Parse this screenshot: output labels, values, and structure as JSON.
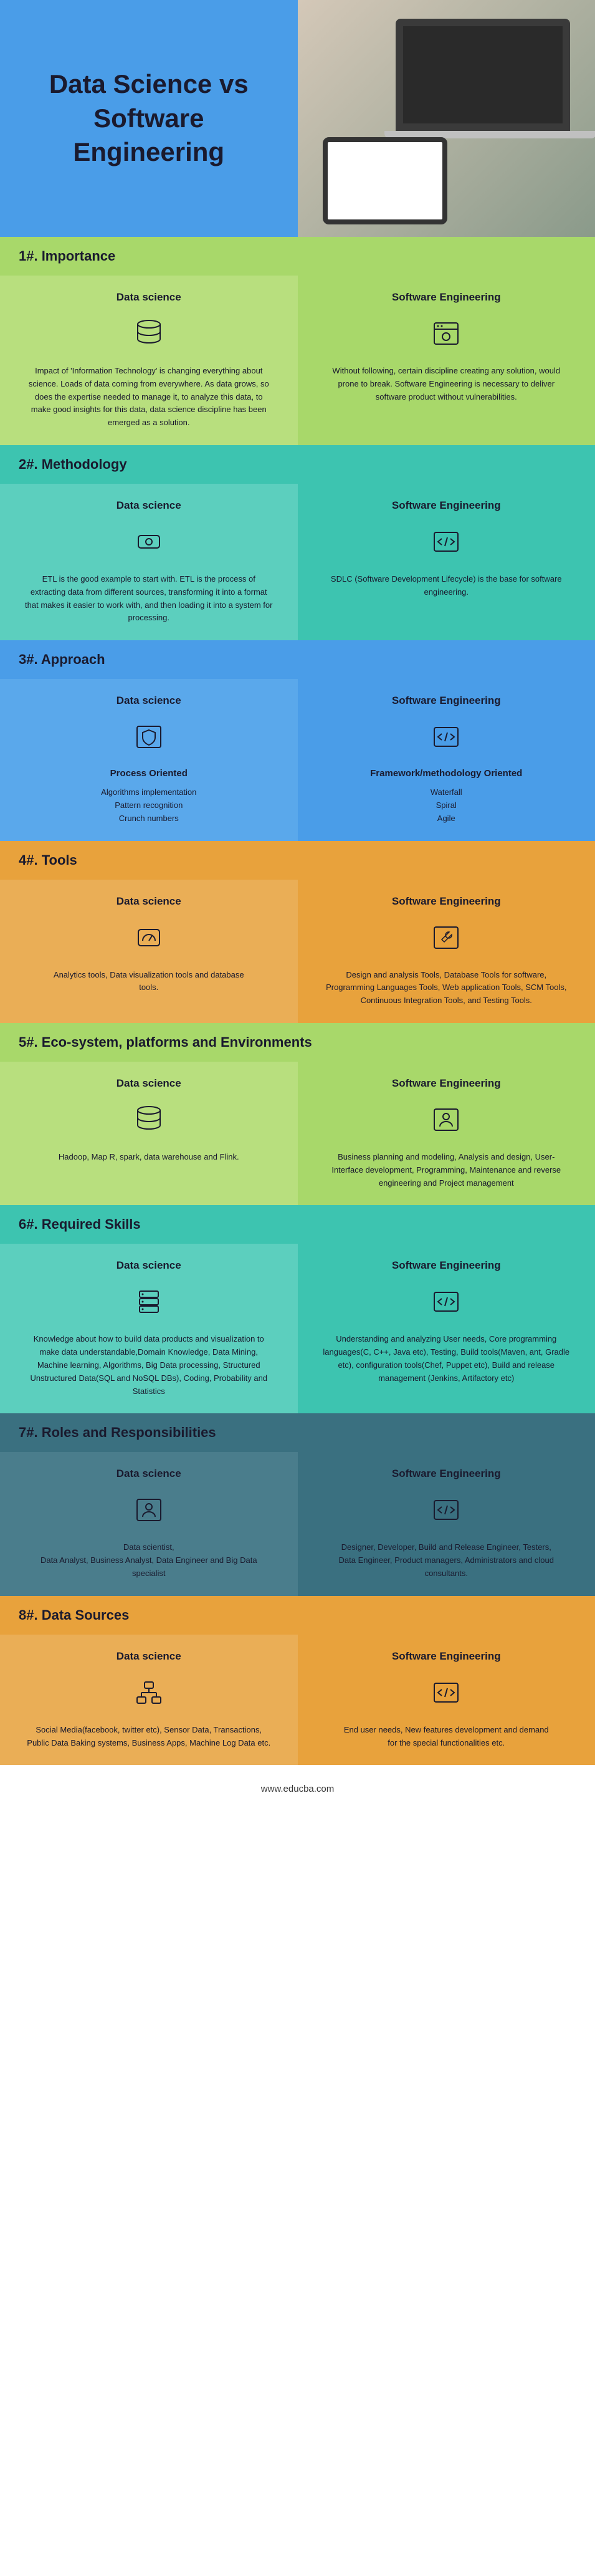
{
  "title": "Data Science vs Software Engineering",
  "footer": "www.educba.com",
  "col_labels": {
    "ds": "Data science",
    "se": "Software Engineering"
  },
  "sections": [
    {
      "num": "1#.",
      "title": "Importance",
      "header_bg": "#a8d86a",
      "ds_bg": "#b8df7e",
      "se_bg": "#a8d86a",
      "ds_icon": "database",
      "se_icon": "window",
      "ds_text": "Impact of 'Information Technology' is changing everything about science. Loads of data coming from everywhere. As data grows, so does the expertise needed to manage it, to analyze this data, to make good insights for this data, data science discipline has been emerged as a solution.",
      "se_text": "Without following, certain discipline creating any solution, would prone to break.  Software Engineering is necessary to deliver software product without vulnerabilities."
    },
    {
      "num": "2#.",
      "title": "Methodology",
      "header_bg": "#3dc4b0",
      "ds_bg": "#5ccfbe",
      "se_bg": "#3dc4b0",
      "ds_icon": "drive",
      "se_icon": "code",
      "ds_text": "ETL is the good example to start with. ETL is the process of extracting data from different sources, transforming it into a format that makes it easier to work with, and then loading it into a system for processing.",
      "se_text": "SDLC (Software Development Lifecycle) is the base for software engineering."
    },
    {
      "num": "3#.",
      "title": "Approach",
      "header_bg": "#4a9de8",
      "ds_bg": "#5aa8eb",
      "se_bg": "#4a9de8",
      "ds_icon": "shield",
      "se_icon": "code",
      "ds_subtitle": "Process Oriented",
      "se_subtitle": "Framework/methodology  Oriented",
      "ds_text": "Algorithms implementation\nPattern recognition\nCrunch numbers",
      "se_text": "Waterfall\nSpiral\nAgile"
    },
    {
      "num": "4#.",
      "title": "Tools",
      "header_bg": "#e8a23c",
      "ds_bg": "#eaae56",
      "se_bg": "#e8a23c",
      "ds_icon": "gauge",
      "se_icon": "wrench",
      "ds_text": "Analytics tools, Data visualization tools and database\ntools.",
      "se_text": "Design and analysis Tools, Database Tools for software, Programming Languages Tools, Web application Tools, SCM Tools, Continuous Integration Tools, and Testing Tools."
    },
    {
      "num": "5#.",
      "title": "Eco-system, platforms and Environments",
      "header_bg": "#a8d86a",
      "ds_bg": "#b8df7e",
      "se_bg": "#a8d86a",
      "ds_icon": "database",
      "se_icon": "user",
      "ds_text": "Hadoop, Map R, spark, data warehouse and Flink.",
      "se_text": "Business planning and modeling, Analysis and design, User-Interface development, Programming, Maintenance and reverse engineering and Project management"
    },
    {
      "num": "6#.",
      "title": "Required Skills",
      "header_bg": "#3dc4b0",
      "ds_bg": "#5ccfbe",
      "se_bg": "#3dc4b0",
      "ds_icon": "server",
      "se_icon": "code",
      "ds_text": "Knowledge about how to build data products and visualization to make data understandable,Domain Knowledge, Data Mining, Machine learning, Algorithms, Big Data processing, Structured Unstructured Data(SQL and NoSQL DBs), Coding, Probability and Statistics",
      "se_text": "Understanding and analyzing User needs, Core programming languages(C, C++, Java etc), Testing, Build tools(Maven, ant, Gradle etc), configuration tools(Chef, Puppet etc), Build and release management (Jenkins, Artifactory etc)"
    },
    {
      "num": "7#.",
      "title": "Roles and Responsibilities",
      "header_bg": "#3a7080",
      "ds_bg": "#4a7d8c",
      "se_bg": "#3a7080",
      "ds_icon": "user",
      "se_icon": "code",
      "ds_text": "Data scientist,\nData Analyst, Business Analyst, Data Engineer and Big Data specialist",
      "se_text": "Designer, Developer, Build and Release Engineer, Testers,\nData Engineer, Product managers, Administrators and cloud consultants."
    },
    {
      "num": "8#.",
      "title": "Data Sources",
      "header_bg": "#e8a23c",
      "ds_bg": "#eaae56",
      "se_bg": "#e8a23c",
      "ds_icon": "network",
      "se_icon": "code",
      "ds_text": "Social  Media(facebook, twitter etc), Sensor Data, Transactions, Public Data Baking systems, Business Apps, Machine Log Data etc.",
      "se_text": "End user needs, New features development and demand\nfor the special functionalities etc."
    }
  ],
  "icons": {
    "database": "<svg viewBox='0 0 50 50'><ellipse cx='25' cy='10' rx='18' ry='6' fill='none' stroke='#1a1a2e' stroke-width='2'/><path d='M7 10 v12 a18 6 0 0 0 36 0 V10' fill='none' stroke='#1a1a2e' stroke-width='2'/><path d='M7 22 v12 a18 6 0 0 0 36 0 V22' fill='none' stroke='#1a1a2e' stroke-width='2'/></svg>",
    "window": "<svg viewBox='0 0 50 50'><rect x='6' y='8' width='38' height='34' rx='3' fill='none' stroke='#1a1a2e' stroke-width='2'/><line x1='6' y1='18' x2='44' y2='18' stroke='#1a1a2e' stroke-width='2'/><circle cx='12' cy='13' r='1.5' fill='#1a1a2e'/><circle cx='18' cy='13' r='1.5' fill='#1a1a2e'/><circle cx='25' cy='30' r='6' fill='none' stroke='#1a1a2e' stroke-width='2'/></svg>",
    "drive": "<svg viewBox='0 0 50 50'><rect x='8' y='15' width='34' height='20' rx='4' fill='none' stroke='#1a1a2e' stroke-width='2'/><circle cx='25' cy='25' r='5' fill='none' stroke='#1a1a2e' stroke-width='2'/></svg>",
    "code": "<svg viewBox='0 0 50 50'><rect x='6' y='10' width='38' height='30' rx='3' fill='none' stroke='#1a1a2e' stroke-width='2'/><path d='M18 20 l-6 5 l6 5 M32 20 l6 5 l-6 5 M27 18 l-4 14' fill='none' stroke='#1a1a2e' stroke-width='2'/></svg>",
    "shield": "<svg viewBox='0 0 50 50'><rect x='6' y='8' width='38' height='34' rx='3' fill='none' stroke='#1a1a2e' stroke-width='2'/><path d='M25 14 l10 4 v8 c0 6 -5 10 -10 12 c-5 -2 -10 -6 -10 -12 v-8 z' fill='none' stroke='#1a1a2e' stroke-width='2'/></svg>",
    "gauge": "<svg viewBox='0 0 50 50'><rect x='8' y='12' width='34' height='26' rx='4' fill='none' stroke='#1a1a2e' stroke-width='2'/><path d='M15 30 a10 10 0 0 1 20 0' fill='none' stroke='#1a1a2e' stroke-width='2'/><line x1='25' y1='30' x2='30' y2='22' stroke='#1a1a2e' stroke-width='2'/></svg>",
    "wrench": "<svg viewBox='0 0 50 50'><rect x='6' y='8' width='38' height='34' rx='3' fill='none' stroke='#1a1a2e' stroke-width='2'/><path d='M30 16 a5 5 0 1 0 4 4 l-12 12 l-4 -4 z' fill='none' stroke='#1a1a2e' stroke-width='1.5'/></svg>",
    "user": "<svg viewBox='0 0 50 50'><rect x='6' y='8' width='38' height='34' rx='3' fill='none' stroke='#1a1a2e' stroke-width='2'/><circle cx='25' cy='20' r='5' fill='none' stroke='#1a1a2e' stroke-width='2'/><path d='M15 36 a10 8 0 0 1 20 0' fill='none' stroke='#1a1a2e' stroke-width='2'/></svg>",
    "server": "<svg viewBox='0 0 50 50'><rect x='10' y='8' width='30' height='10' rx='2' fill='none' stroke='#1a1a2e' stroke-width='2'/><rect x='10' y='20' width='30' height='10' rx='2' fill='none' stroke='#1a1a2e' stroke-width='2'/><rect x='10' y='32' width='30' height='10' rx='2' fill='none' stroke='#1a1a2e' stroke-width='2'/><circle cx='15' cy='13' r='1.5' fill='#1a1a2e'/><circle cx='15' cy='25' r='1.5' fill='#1a1a2e'/><circle cx='15' cy='37' r='1.5' fill='#1a1a2e'/></svg>",
    "network": "<svg viewBox='0 0 50 50'><rect x='18' y='8' width='14' height='10' rx='2' fill='none' stroke='#1a1a2e' stroke-width='2'/><rect x='6' y='32' width='14' height='10' rx='2' fill='none' stroke='#1a1a2e' stroke-width='2'/><rect x='30' y='32' width='14' height='10' rx='2' fill='none' stroke='#1a1a2e' stroke-width='2'/><line x1='25' y1='18' x2='25' y2='25' stroke='#1a1a2e' stroke-width='2'/><line x1='13' y1='32' x2='13' y2='25' stroke='#1a1a2e' stroke-width='2'/><line x1='37' y1='32' x2='37' y2='25' stroke='#1a1a2e' stroke-width='2'/><line x1='13' y1='25' x2='37' y2='25' stroke='#1a1a2e' stroke-width='2'/></svg>"
  }
}
